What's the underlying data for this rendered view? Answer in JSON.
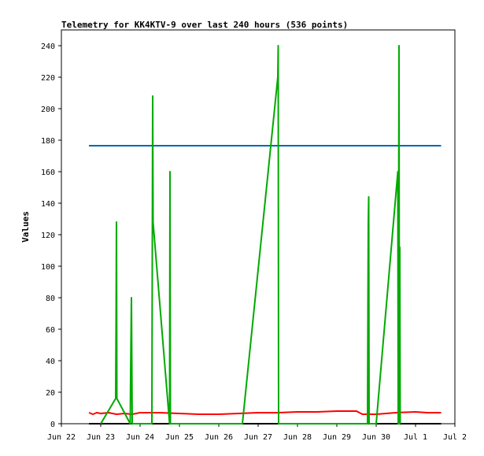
{
  "chart_data": {
    "type": "line",
    "title": "Telemetry for KK4KTV-9 over last 240 hours (536 points)",
    "xlabel": "",
    "ylabel": "Values",
    "xlim": [
      "Jun 22",
      "Jul 2"
    ],
    "ylim": [
      0,
      250
    ],
    "x_ticks": [
      "Jun 22",
      "Jun 23",
      "Jun 24",
      "Jun 25",
      "Jun 26",
      "Jun 27",
      "Jun 28",
      "Jun 29",
      "Jun 30",
      "Jul 1",
      "Jul 2"
    ],
    "y_ticks": [
      0,
      20,
      40,
      60,
      80,
      100,
      120,
      140,
      160,
      180,
      200,
      220,
      240
    ],
    "grid": false,
    "legend": "none",
    "series": [
      {
        "color": "#0066b3",
        "points": [
          [
            0.7,
            176.5
          ],
          [
            9.65,
            176.5
          ]
        ]
      },
      {
        "color": "#ff0000",
        "points": [
          [
            0.7,
            7
          ],
          [
            0.8,
            6
          ],
          [
            0.9,
            7
          ],
          [
            1.0,
            6.5
          ],
          [
            1.2,
            7
          ],
          [
            1.4,
            6
          ],
          [
            1.6,
            6.5
          ],
          [
            1.8,
            6
          ],
          [
            2.0,
            7
          ],
          [
            2.5,
            7
          ],
          [
            3.0,
            6.5
          ],
          [
            3.5,
            6
          ],
          [
            4.0,
            6
          ],
          [
            4.5,
            6.5
          ],
          [
            5.0,
            7
          ],
          [
            5.5,
            7
          ],
          [
            6.0,
            7.5
          ],
          [
            6.5,
            7.5
          ],
          [
            7.0,
            8
          ],
          [
            7.5,
            8
          ],
          [
            7.65,
            6
          ],
          [
            8.0,
            6
          ],
          [
            8.5,
            7
          ],
          [
            9.0,
            7.5
          ],
          [
            9.3,
            7
          ],
          [
            9.65,
            7
          ]
        ]
      },
      {
        "color": "#000000",
        "points": [
          [
            0.7,
            0
          ],
          [
            9.65,
            0
          ]
        ]
      },
      {
        "color": "#00aa00",
        "points": [
          [
            1.0,
            0
          ],
          [
            1.38,
            16
          ],
          [
            1.39,
            64
          ],
          [
            1.4,
            128
          ],
          [
            1.41,
            16
          ],
          [
            1.75,
            0
          ],
          [
            1.76,
            32
          ],
          [
            1.78,
            80
          ],
          [
            1.79,
            40
          ],
          [
            1.8,
            0
          ],
          [
            2.3,
            0
          ],
          [
            2.31,
            104
          ],
          [
            2.32,
            208
          ],
          [
            2.33,
            128
          ],
          [
            2.75,
            0
          ],
          [
            2.76,
            160
          ],
          [
            2.77,
            0
          ],
          [
            4.6,
            0
          ],
          [
            5.5,
            220
          ],
          [
            5.51,
            240
          ],
          [
            5.52,
            0
          ],
          [
            7.78,
            0
          ],
          [
            7.79,
            72
          ],
          [
            7.8,
            128
          ],
          [
            7.81,
            144
          ],
          [
            7.82,
            0
          ],
          [
            8.0,
            0
          ],
          [
            8.55,
            160
          ],
          [
            8.56,
            0
          ],
          [
            8.58,
            240
          ],
          [
            8.59,
            0
          ],
          [
            8.6,
            112
          ],
          [
            8.61,
            0
          ]
        ]
      }
    ]
  }
}
